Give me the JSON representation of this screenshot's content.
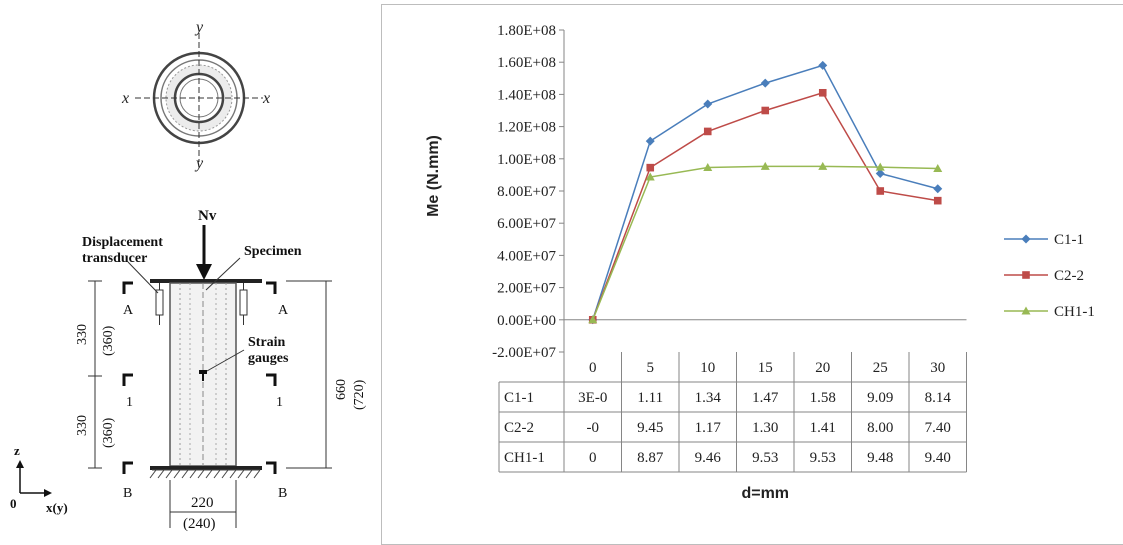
{
  "diagram": {
    "cross_section_axis_labels": {
      "y_top": "y",
      "y_bottom": "y",
      "x_left": "x",
      "x_right": "x"
    },
    "load_label": "Nv",
    "displacement_transducer_label_1": "Displacement",
    "displacement_transducer_label_2": "transducer",
    "specimen_label": "Specimen",
    "strain_label_1": "Strain",
    "strain_label_2": "gauges",
    "section_A_left": "A",
    "section_A_right": "A",
    "section_1_left": "1",
    "section_1_right": "1",
    "section_B_left": "B",
    "section_B_right": "B",
    "dim_upper": "330",
    "dim_upper_paren": "(360)",
    "dim_lower": "330",
    "dim_lower_paren": "(360)",
    "dim_total": "660",
    "dim_total_paren": "(720)",
    "dim_width": "220",
    "dim_width_paren": "(240)",
    "coord_z": "z",
    "coord_origin": "0",
    "coord_x": "x(y)"
  },
  "chart_data": {
    "type": "line",
    "ylabel": "Me (N.mm)",
    "xlabel": "d=mm",
    "categories": [
      "0",
      "5",
      "10",
      "15",
      "20",
      "25",
      "30"
    ],
    "ylim": [
      -20000000,
      180000000
    ],
    "yticks": [
      -20000000,
      0,
      20000000,
      40000000,
      60000000,
      80000000,
      100000000,
      120000000,
      140000000,
      160000000,
      180000000
    ],
    "ytick_labels": [
      "-2.00E+07",
      "0.00E+00",
      "2.00E+07",
      "4.00E+07",
      "6.00E+07",
      "8.00E+07",
      "1.00E+08",
      "1.20E+08",
      "1.40E+08",
      "1.60E+08",
      "1.80E+08"
    ],
    "grid": false,
    "legend": "right",
    "series": [
      {
        "name": "C1-1",
        "color": "#4a7ebb",
        "marker": "diamond",
        "values": [
          0,
          111000000,
          134000000,
          147000000,
          158000000,
          90900000,
          81400000
        ]
      },
      {
        "name": "C2-2",
        "color": "#be4b48",
        "marker": "square",
        "values": [
          0,
          94500000,
          117000000,
          130000000,
          141000000,
          80000000,
          74000000
        ]
      },
      {
        "name": "CH1-1",
        "color": "#98b954",
        "marker": "triangle",
        "values": [
          0,
          88700000,
          94600000,
          95300000,
          95300000,
          94800000,
          94000000
        ]
      }
    ],
    "table": {
      "header": [
        "0",
        "5",
        "10",
        "15",
        "20",
        "25",
        "30"
      ],
      "rows": [
        {
          "label": "C1-1",
          "cells": [
            "3E-0",
            "1.11",
            "1.34",
            "1.47",
            "1.58",
            "9.09",
            "8.14"
          ]
        },
        {
          "label": "C2-2",
          "cells": [
            "-0",
            "9.45",
            "1.17",
            "1.30",
            "1.41",
            "8.00",
            "7.40"
          ]
        },
        {
          "label": "CH1-1",
          "cells": [
            "0",
            "8.87",
            "9.46",
            "9.53",
            "9.53",
            "9.48",
            "9.40"
          ]
        }
      ]
    }
  }
}
